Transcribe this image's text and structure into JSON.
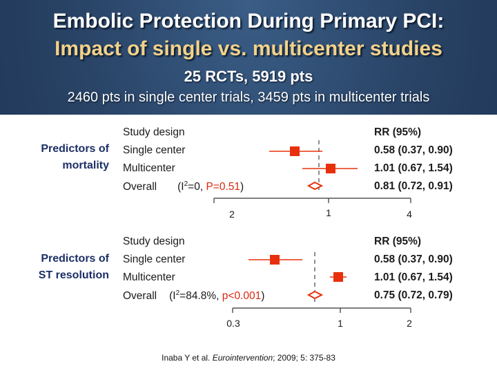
{
  "header": {
    "title_line1": "Embolic Protection During Primary PCI:",
    "title_line2": "Impact of single vs. multicenter studies",
    "subtitle": "25 RCTs, 5919 pts",
    "detail": "2460 pts in single center trials, 3459 pts in multicenter trials"
  },
  "colors": {
    "accent_title": "#f2d28a",
    "marker": "#e8300c",
    "diamond": "#e8300c"
  },
  "plot1": {
    "predictor": "Predictors of mortality",
    "predictor_line1": "Predictors of",
    "predictor_line2": "mortality",
    "col_design": "Study design",
    "col_rr": "RR (95%)",
    "rows": [
      {
        "label": "Single center",
        "rr": "0.58 (0.37, 0.90)"
      },
      {
        "label": "Multicenter",
        "rr": "1.01 (0.67, 1.54)"
      }
    ],
    "overall_label": "Overall",
    "heterogeneity_prefix": "(I",
    "heterogeneity_sup": "2",
    "heterogeneity_i2": "=0, ",
    "heterogeneity_p": "P=0.51",
    "heterogeneity_close": ")",
    "overall_rr": "0.81 (0.72, 0.91)",
    "ticks": [
      "2",
      "1",
      "4"
    ]
  },
  "plot2": {
    "predictor": "Predictors of ST resolution",
    "predictor_line1": "Predictors of",
    "predictor_line2": "ST resolution",
    "col_design": "Study design",
    "col_rr": "RR (95%)",
    "rows": [
      {
        "label": "Single center",
        "rr": "0.58 (0.37, 0.90)"
      },
      {
        "label": "Multicenter",
        "rr": "1.01 (0.67, 1.54)"
      }
    ],
    "overall_label": "Overall",
    "heterogeneity_prefix": "(I",
    "heterogeneity_sup": "2",
    "heterogeneity_i2": "=84.8%, ",
    "heterogeneity_p": "p<0.001",
    "heterogeneity_close": ")",
    "overall_rr": "0.75 (0.72, 0.79)",
    "ticks": [
      "0.3",
      "1",
      "2"
    ]
  },
  "citation": {
    "authors": "Inaba Y et al. ",
    "journal": "Eurointervention",
    "rest": "; 2009; 5: 375-83"
  }
}
